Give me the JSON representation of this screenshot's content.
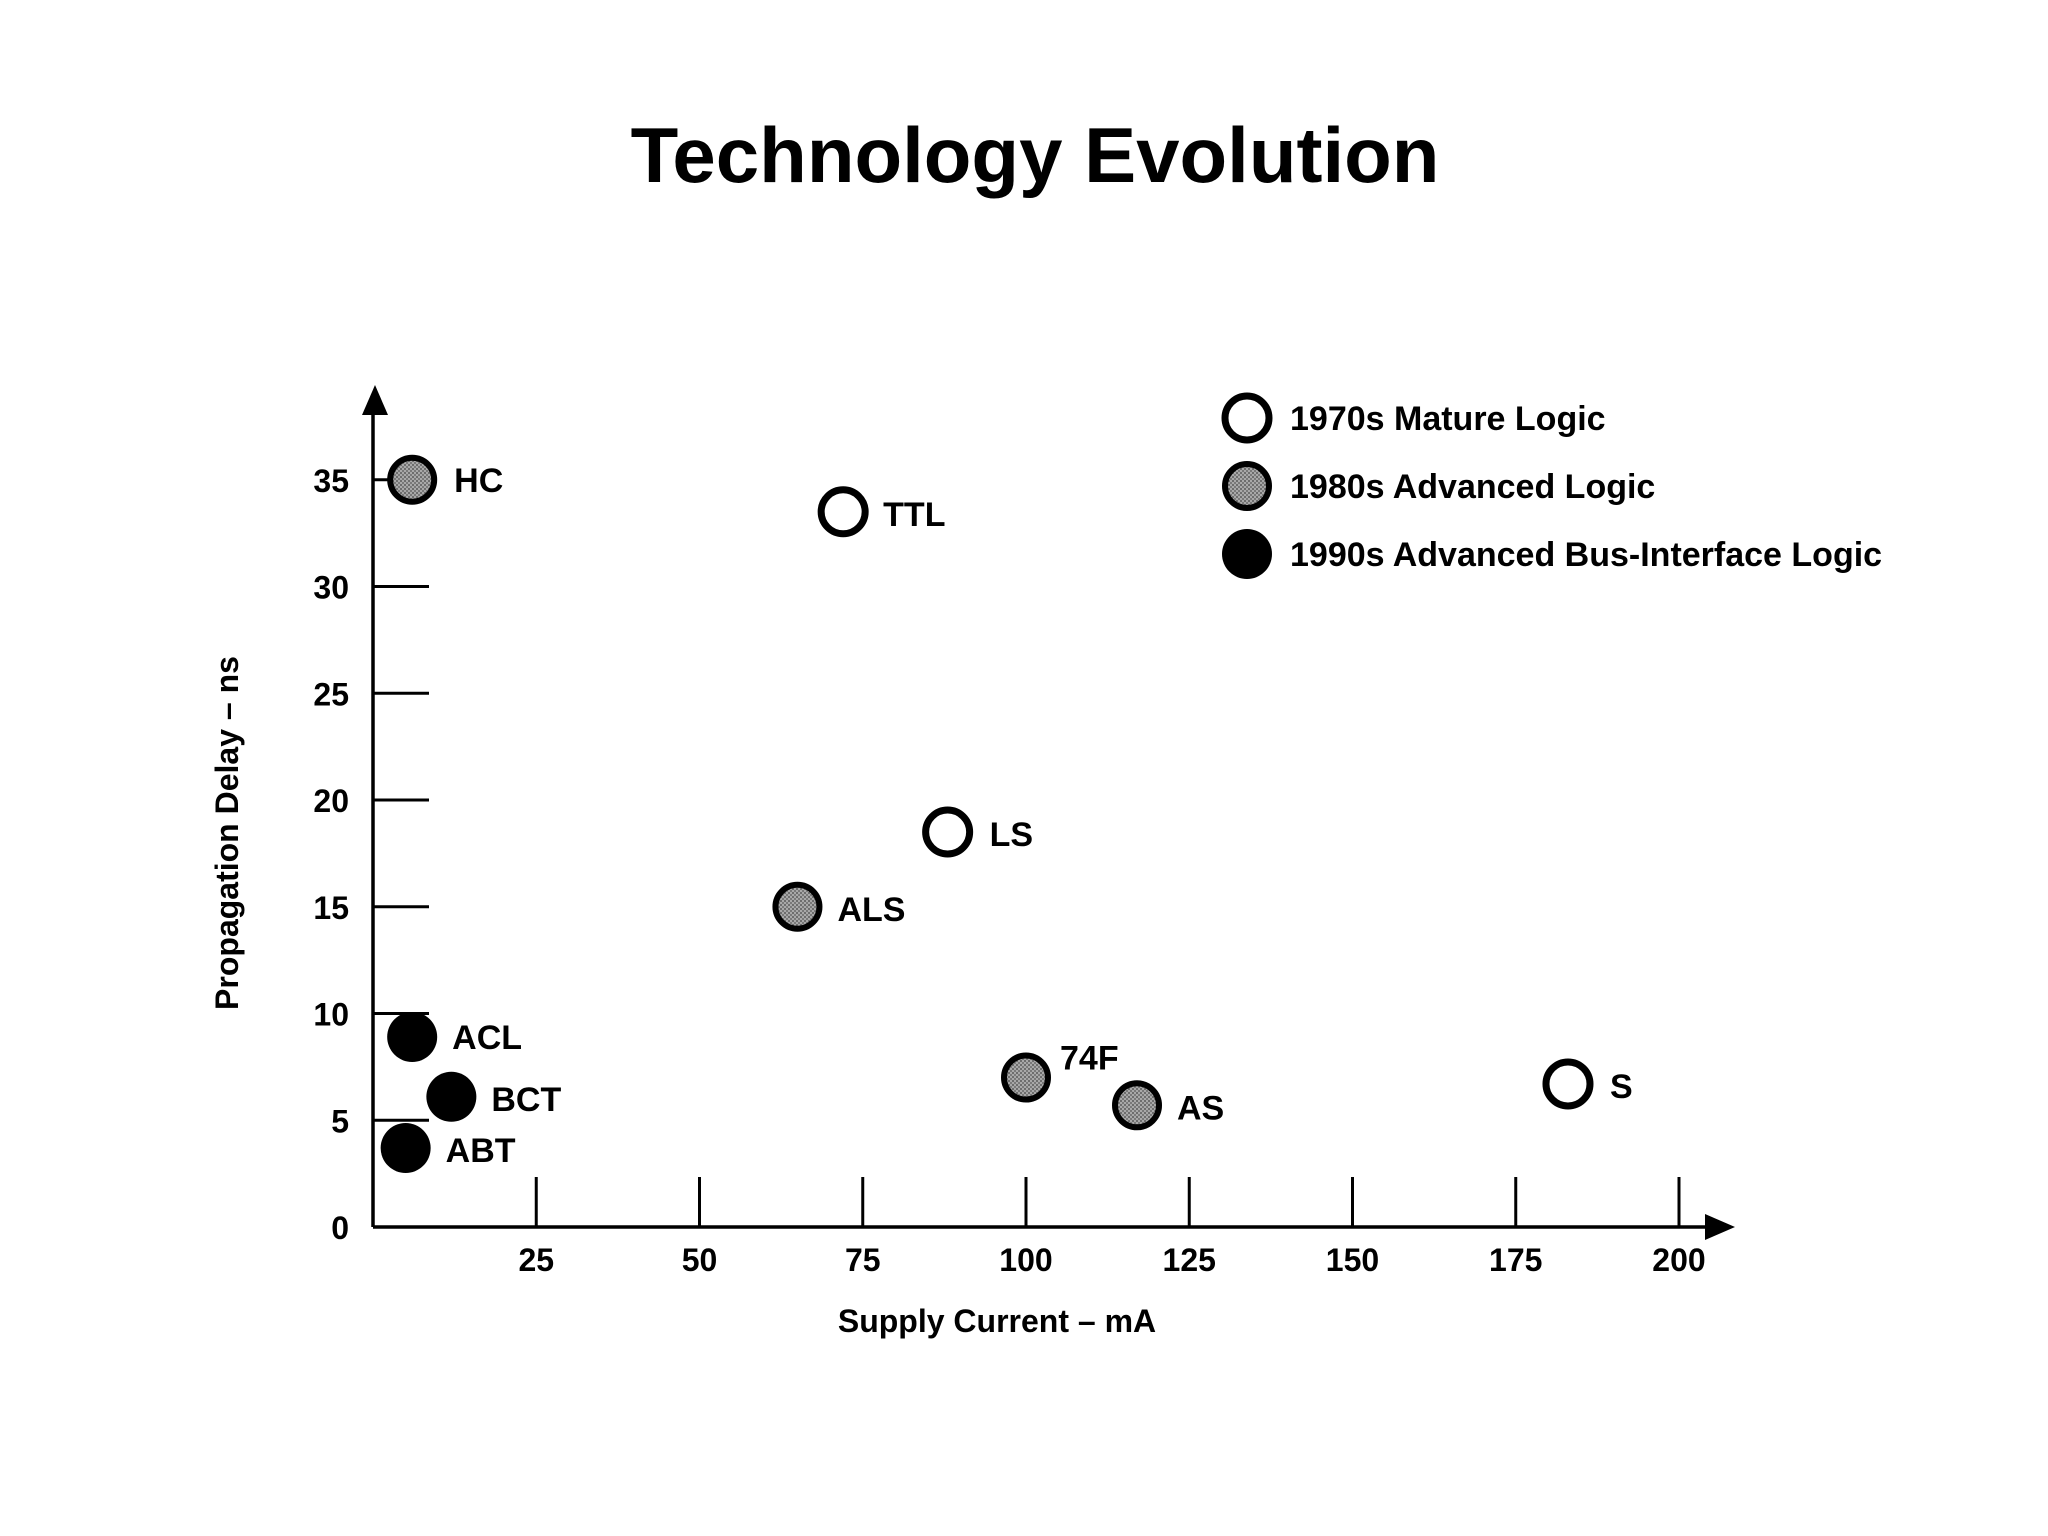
{
  "chart_data": {
    "type": "scatter",
    "title": "Technology Evolution",
    "xlabel": "Supply Current – mA",
    "ylabel": "Propagation Delay – ns",
    "xlim": [
      0,
      210
    ],
    "ylim": [
      0,
      38
    ],
    "xticks": [
      25,
      50,
      75,
      100,
      125,
      150,
      175,
      200
    ],
    "yticks": [
      0,
      5,
      10,
      15,
      20,
      25,
      30,
      35
    ],
    "grid": false,
    "legend_position": "top-right",
    "series": [
      {
        "name": "1970s Mature Logic",
        "style": "open",
        "color": "#000000",
        "points": [
          {
            "label": "TTL",
            "x": 72,
            "y": 33.5
          },
          {
            "label": "LS",
            "x": 88,
            "y": 18.5
          },
          {
            "label": "S",
            "x": 183,
            "y": 6.7
          }
        ]
      },
      {
        "name": "1980s Advanced Logic",
        "style": "gray",
        "color": "#8a8a8a",
        "points": [
          {
            "label": "HC",
            "x": 6,
            "y": 35
          },
          {
            "label": "ALS",
            "x": 65,
            "y": 15
          },
          {
            "label": "74F",
            "x": 100,
            "y": 7
          },
          {
            "label": "AS",
            "x": 117,
            "y": 5.7
          }
        ]
      },
      {
        "name": "1990s Advanced Bus-Interface Logic",
        "style": "filled",
        "color": "#000000",
        "points": [
          {
            "label": "ACL",
            "x": 6,
            "y": 8.9
          },
          {
            "label": "BCT",
            "x": 12,
            "y": 6.1
          },
          {
            "label": "ABT",
            "x": 5,
            "y": 3.7
          }
        ]
      }
    ]
  }
}
